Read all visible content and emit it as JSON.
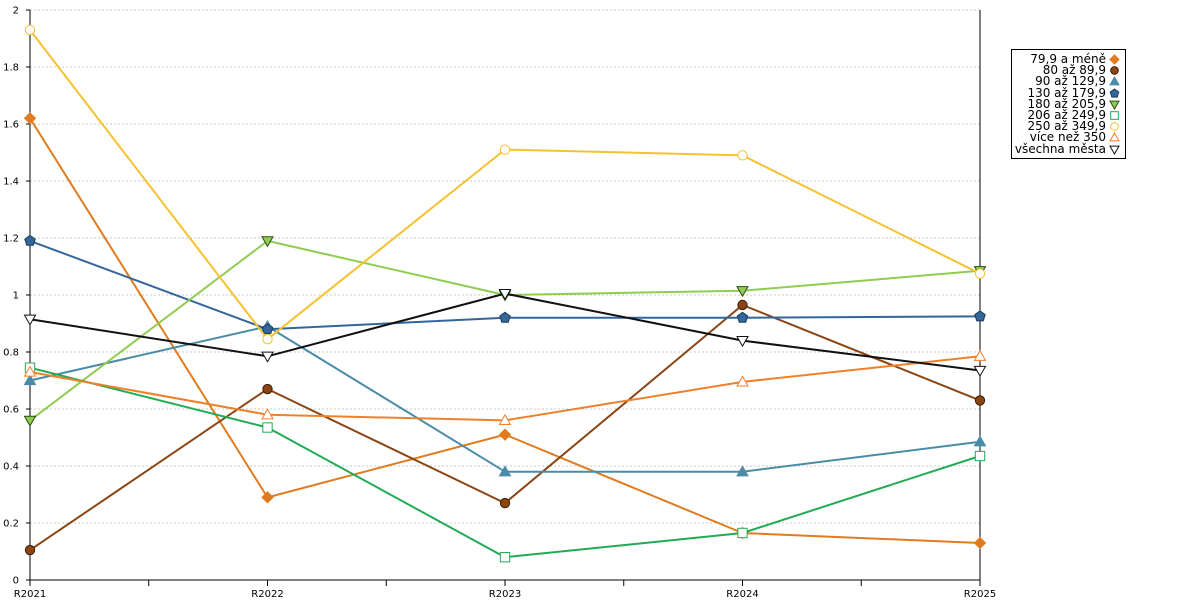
{
  "chart_data": {
    "type": "line",
    "categories": [
      "R2021",
      "R2022",
      "R2023",
      "R2024",
      "R2025"
    ],
    "ylim": [
      0,
      2
    ],
    "yticks": [
      "0",
      "0.2",
      "0.4",
      "0.6",
      "0.8",
      "1",
      "1.2",
      "1.4",
      "1.6",
      "1.8",
      "2"
    ],
    "grid": true,
    "legend_position": "right",
    "series": [
      {
        "name": "79,9 a méně",
        "color": "#E07B1F",
        "marker": "diamond",
        "values": [
          1.62,
          0.29,
          0.51,
          0.165,
          0.13
        ]
      },
      {
        "name": "80 až 89,9",
        "color": "#8B4513",
        "marker": "circle",
        "values": [
          0.105,
          0.67,
          0.27,
          0.965,
          0.63
        ]
      },
      {
        "name": "90 až 129,9",
        "color": "#4A8BA8",
        "marker": "triangle-up",
        "values": [
          0.7,
          0.89,
          0.38,
          0.38,
          0.485
        ]
      },
      {
        "name": "130 až 179,9",
        "color": "#336699",
        "marker": "pentagon",
        "values": [
          1.19,
          0.88,
          0.92,
          0.92,
          0.925
        ]
      },
      {
        "name": "180 až 205,9",
        "color": "#8FCC50",
        "marker": "triangle-down",
        "values": [
          0.56,
          1.19,
          1.0,
          1.015,
          1.085
        ]
      },
      {
        "name": "206 až 249,9",
        "color": "#22AA55",
        "marker": "square-open",
        "values": [
          0.745,
          0.535,
          0.08,
          0.165,
          0.435
        ]
      },
      {
        "name": "250 až 349,9",
        "color": "#F5C131",
        "marker": "circle-open",
        "values": [
          1.93,
          0.845,
          1.51,
          1.49,
          1.075
        ]
      },
      {
        "name": "více než 350",
        "color": "#F07F2A",
        "marker": "triangle-up-open",
        "values": [
          0.73,
          0.58,
          0.56,
          0.695,
          0.785
        ]
      },
      {
        "name": "všechna města",
        "color": "#111111",
        "marker": "triangle-down-open",
        "values": [
          0.915,
          0.785,
          1.005,
          0.84,
          0.735
        ]
      }
    ]
  }
}
